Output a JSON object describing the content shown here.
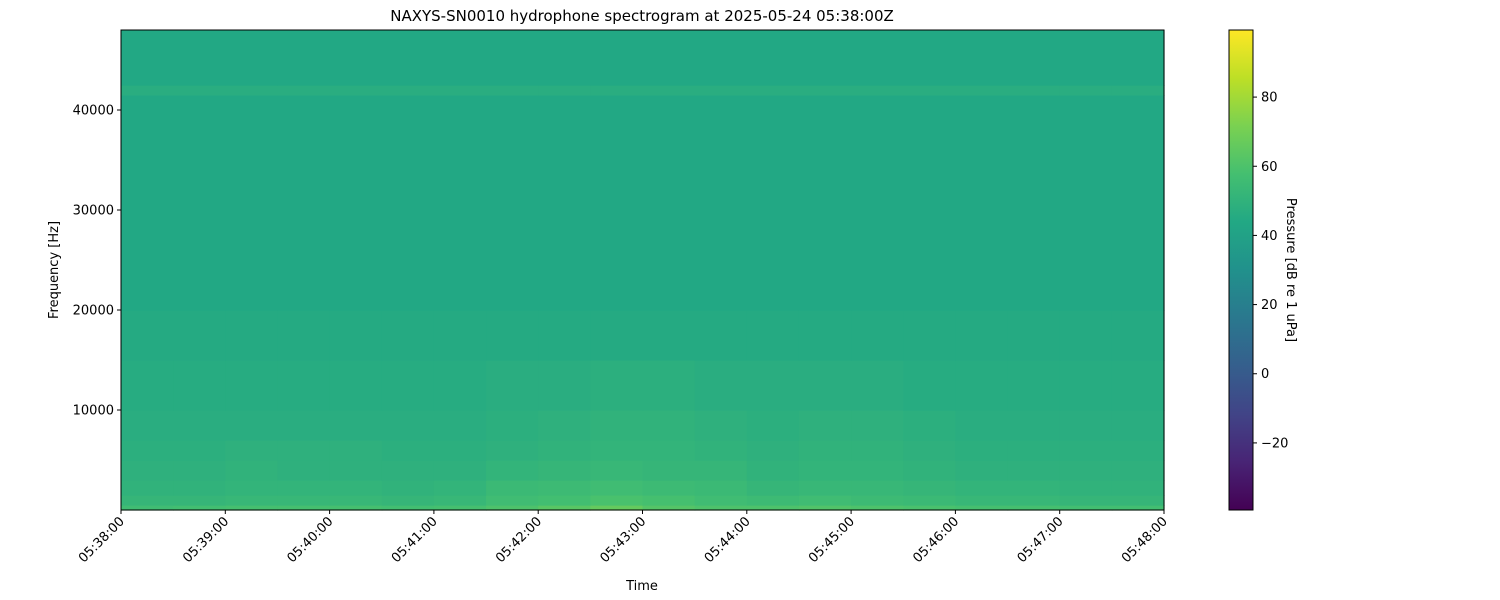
{
  "chart_data": {
    "type": "heatmap",
    "title": "NAXYS-SN0010 hydrophone spectrogram at 2025-05-24 05:38:00Z",
    "xlabel": "Time",
    "ylabel": "Frequency [Hz]",
    "colorbar_label": "Pressure [dB re 1 uPa]",
    "colormap": "viridis",
    "clim": [
      -39.4,
      99.4
    ],
    "colorbar_ticks": [
      -20,
      0,
      20,
      40,
      60,
      80
    ],
    "colorbar_tick_labels": [
      "−20",
      "0",
      "20",
      "40",
      "60",
      "80"
    ],
    "ylim": [
      0,
      48000
    ],
    "yticks": [
      10000,
      20000,
      30000,
      40000
    ],
    "ytick_labels": [
      "10000",
      "20000",
      "30000",
      "40000"
    ],
    "xtick_labels": [
      "05:38:00",
      "05:39:00",
      "05:40:00",
      "05:41:00",
      "05:42:00",
      "05:43:00",
      "05:44:00",
      "05:45:00",
      "05:46:00",
      "05:47:00",
      "05:48:00"
    ],
    "time_bins": [
      "05:38:00",
      "05:38:30",
      "05:39:00",
      "05:39:30",
      "05:40:00",
      "05:40:30",
      "05:41:00",
      "05:41:30",
      "05:42:00",
      "05:42:30",
      "05:43:00",
      "05:43:30",
      "05:44:00",
      "05:44:30",
      "05:45:00",
      "05:45:30",
      "05:46:00",
      "05:46:30",
      "05:47:00",
      "05:47:30"
    ],
    "time_end": "05:48:00",
    "frequency_band_edges": [
      0,
      500,
      1500,
      3000,
      5000,
      7000,
      10000,
      15000,
      20000,
      41500,
      42500,
      48000
    ],
    "values_db": [
      [
        56,
        57,
        58,
        58,
        58,
        57,
        58,
        60,
        63,
        66,
        62,
        60,
        60,
        61,
        60,
        59,
        58,
        58,
        57,
        57
      ],
      [
        52,
        52,
        53,
        53,
        53,
        52,
        53,
        56,
        57,
        59,
        58,
        56,
        55,
        56,
        55,
        54,
        53,
        53,
        52,
        52
      ],
      [
        50,
        50,
        51,
        51,
        51,
        50,
        51,
        54,
        55,
        56,
        55,
        54,
        52,
        53,
        53,
        52,
        51,
        51,
        50,
        50
      ],
      [
        49,
        49,
        50,
        49,
        49,
        49,
        49,
        51,
        52,
        53,
        52,
        52,
        50,
        51,
        51,
        50,
        49,
        49,
        49,
        49
      ],
      [
        48,
        48,
        49,
        49,
        49,
        48,
        48,
        49,
        50,
        51,
        51,
        50,
        49,
        50,
        50,
        49,
        48,
        48,
        48,
        48
      ],
      [
        47,
        47,
        47,
        47,
        47,
        47,
        47,
        48,
        49,
        50,
        50,
        49,
        48,
        49,
        49,
        48,
        47,
        47,
        47,
        47
      ],
      [
        46,
        46,
        46,
        46,
        46,
        46,
        46,
        47,
        47,
        48,
        48,
        47,
        47,
        47,
        47,
        46,
        46,
        46,
        46,
        46
      ],
      [
        45,
        45,
        45,
        45,
        45,
        45,
        45,
        45,
        45,
        45,
        45,
        45,
        45,
        45,
        45,
        45,
        45,
        45,
        45,
        45
      ],
      [
        44,
        44,
        44,
        44,
        44,
        44,
        44,
        44,
        44,
        44,
        44,
        44,
        44,
        44,
        44,
        44,
        44,
        44,
        44,
        44
      ],
      [
        47,
        47,
        47,
        47,
        47,
        47,
        47,
        47,
        47,
        47,
        47,
        47,
        47,
        47,
        47,
        47,
        47,
        47,
        47,
        47
      ],
      [
        44,
        44,
        44,
        44,
        44,
        44,
        44,
        44,
        44,
        44,
        44,
        44,
        44,
        44,
        44,
        44,
        44,
        44,
        44,
        44
      ]
    ]
  }
}
